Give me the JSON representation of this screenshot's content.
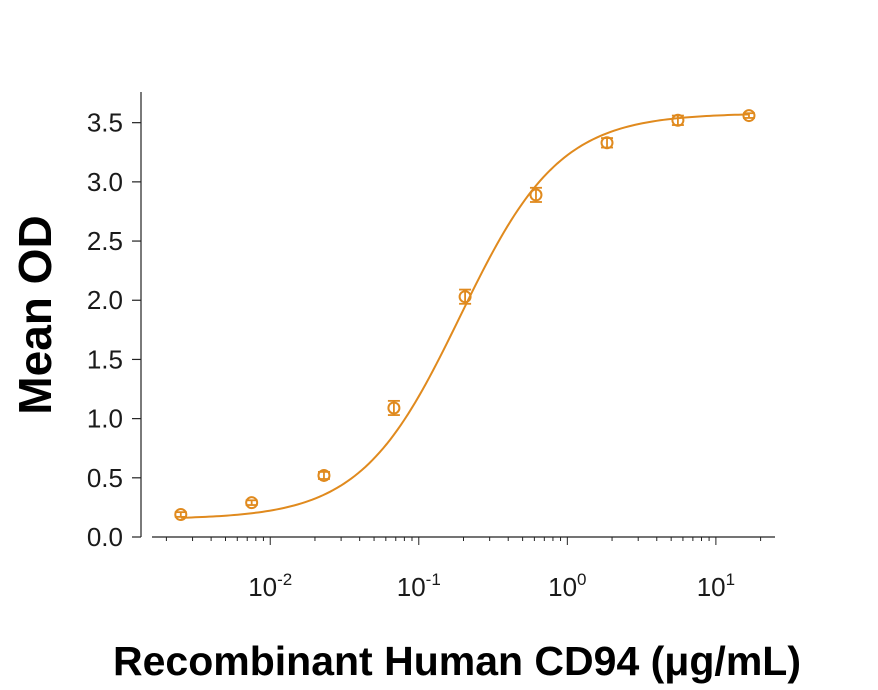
{
  "chart_data": {
    "type": "scatter",
    "xlabel": "Recombinant Human CD94 (μg/mL)",
    "ylabel": "Mean OD",
    "x_scale": "log",
    "xlim": [
      0.0016,
      25
    ],
    "ylim": [
      0.0,
      3.7
    ],
    "y_ticks": [
      "0.0",
      "0.5",
      "1.0",
      "1.5",
      "2.0",
      "2.5",
      "3.0",
      "3.5"
    ],
    "x_ticks": [
      {
        "base": "10",
        "exp": "-2",
        "value": 0.01
      },
      {
        "base": "10",
        "exp": "-1",
        "value": 0.1
      },
      {
        "base": "10",
        "exp": "0",
        "value": 1
      },
      {
        "base": "10",
        "exp": "1",
        "value": 10
      }
    ],
    "grid": false,
    "color": "#E08A1E",
    "series": [
      {
        "x": [
          0.0025,
          0.0075,
          0.023,
          0.068,
          0.205,
          0.615,
          1.85,
          5.55,
          16.7
        ],
        "y": [
          0.19,
          0.29,
          0.52,
          1.09,
          2.03,
          2.89,
          3.33,
          3.52,
          3.56
        ],
        "err": [
          0.02,
          0.02,
          0.03,
          0.06,
          0.06,
          0.06,
          0.04,
          0.04,
          0.02
        ]
      }
    ],
    "fit_curve": {
      "model": "4PL",
      "bottom": 0.15,
      "top": 3.58,
      "ec50": 0.19,
      "hill": 1.3
    }
  }
}
